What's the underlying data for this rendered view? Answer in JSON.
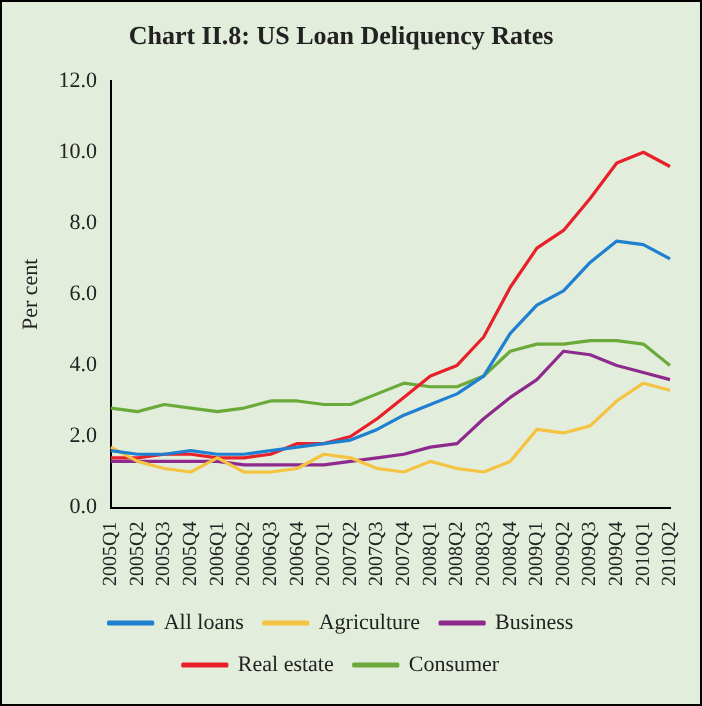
{
  "chart_data": {
    "type": "line",
    "title": "Chart II.8: US Loan Deliquency Rates",
    "ylabel": "Per cent",
    "categories": [
      "2005Q1",
      "2005Q2",
      "2005Q3",
      "2005Q4",
      "2006Q1",
      "2006Q2",
      "2006Q3",
      "2006Q4",
      "2007Q1",
      "2007Q2",
      "2007Q3",
      "2007Q4",
      "2008Q1",
      "2008Q2",
      "2008Q3",
      "2008Q4",
      "2009Q1",
      "2009Q2",
      "2009Q3",
      "2009Q4",
      "2010Q1",
      "2010Q2"
    ],
    "series": [
      {
        "name": "All loans",
        "color": "#1f7fd0",
        "values": [
          1.6,
          1.5,
          1.5,
          1.6,
          1.5,
          1.5,
          1.6,
          1.7,
          1.8,
          1.9,
          2.2,
          2.6,
          2.9,
          3.2,
          3.7,
          4.9,
          5.7,
          6.1,
          6.9,
          7.5,
          7.4,
          7.0
        ]
      },
      {
        "name": "Agriculture",
        "color": "#f5c342",
        "values": [
          1.7,
          1.3,
          1.1,
          1.0,
          1.4,
          1.0,
          1.0,
          1.1,
          1.5,
          1.4,
          1.1,
          1.0,
          1.3,
          1.1,
          1.0,
          1.3,
          2.2,
          2.1,
          2.3,
          3.0,
          3.5,
          3.3
        ]
      },
      {
        "name": "Business",
        "color": "#8e2a8e",
        "values": [
          1.3,
          1.3,
          1.3,
          1.3,
          1.3,
          1.2,
          1.2,
          1.2,
          1.2,
          1.3,
          1.4,
          1.5,
          1.7,
          1.8,
          2.5,
          3.1,
          3.6,
          4.4,
          4.3,
          4.0,
          3.8,
          3.6
        ]
      },
      {
        "name": "Real estate",
        "color": "#e8202a",
        "values": [
          1.4,
          1.4,
          1.5,
          1.5,
          1.4,
          1.4,
          1.5,
          1.8,
          1.8,
          2.0,
          2.5,
          3.1,
          3.7,
          4.0,
          4.8,
          6.2,
          7.3,
          7.8,
          8.7,
          9.7,
          10.0,
          9.6
        ]
      },
      {
        "name": "Consumer",
        "color": "#6aaa3a",
        "values": [
          2.8,
          2.7,
          2.9,
          2.8,
          2.7,
          2.8,
          3.0,
          3.0,
          2.9,
          2.9,
          3.2,
          3.5,
          3.4,
          3.4,
          3.7,
          4.4,
          4.6,
          4.6,
          4.7,
          4.7,
          4.6,
          4.0
        ]
      }
    ],
    "ylim": [
      0,
      12
    ],
    "yticks": [
      {
        "value": 0,
        "label": "0.0"
      },
      {
        "value": 2,
        "label": "2.0"
      },
      {
        "value": 4,
        "label": "4.0"
      },
      {
        "value": 6,
        "label": "6.0"
      },
      {
        "value": 8,
        "label": "8.0"
      },
      {
        "value": 10,
        "label": "10.0"
      },
      {
        "value": 12,
        "label": "12.0"
      }
    ],
    "grid": false,
    "legend": "bottom",
    "marker": "none",
    "line_style": "solid"
  }
}
